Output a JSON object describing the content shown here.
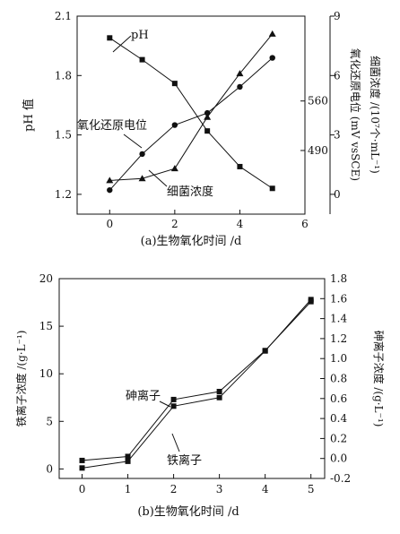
{
  "chart_data": [
    {
      "type": "line",
      "caption": "(a)生物氧化时间 /d",
      "x_ticks": [
        "0",
        "2",
        "4",
        "6"
      ],
      "xlim": [
        -1,
        6
      ],
      "axes": {
        "left": {
          "label": "pH 值",
          "ylim": [
            1.1,
            2.1
          ],
          "ticks": [
            "1.2",
            "1.5",
            "1.8",
            "2.1"
          ]
        },
        "right1": {
          "label": "氧化还原电位 (mV vsSCE)",
          "ylim": [
            400,
            680
          ],
          "ticks": [
            "490",
            "560"
          ]
        },
        "right2": {
          "label": "细菌浓度 /(10⁷个·mL⁻¹)",
          "ylim": [
            -1,
            9
          ],
          "ticks": [
            "0",
            "3",
            "6",
            "9"
          ]
        }
      },
      "series": [
        {
          "name": "pH",
          "marker": "square",
          "axis": "left",
          "x": [
            0,
            1,
            2,
            3,
            4,
            5
          ],
          "values": [
            1.99,
            1.88,
            1.76,
            1.52,
            1.34,
            1.23
          ]
        },
        {
          "name": "氧化还原电位",
          "marker": "circle",
          "axis": "right1",
          "x": [
            0,
            1,
            2,
            3,
            4,
            5
          ],
          "values": [
            434,
            485,
            526,
            543,
            580,
            621
          ]
        },
        {
          "name": "细菌浓度",
          "marker": "triangle",
          "axis": "right2",
          "x": [
            0,
            1,
            2,
            3,
            4,
            5
          ],
          "values": [
            0.7,
            0.8,
            1.3,
            3.9,
            6.1,
            8.1
          ]
        }
      ]
    },
    {
      "type": "line",
      "caption": "(b)生物氧化时间 /d",
      "x_ticks": [
        "0",
        "1",
        "2",
        "3",
        "4",
        "5"
      ],
      "xlim": [
        -0.5,
        5.3
      ],
      "axes": {
        "left": {
          "label": "铁离子浓度 /(g·L⁻¹)",
          "ylim": [
            -1,
            20
          ],
          "ticks": [
            "0",
            "5",
            "10",
            "15",
            "20"
          ]
        },
        "right": {
          "label": "砷离子浓度 /(g·L⁻¹)",
          "ylim": [
            -0.2,
            1.8
          ],
          "ticks": [
            "-0.2",
            "0.0",
            "0.2",
            "0.4",
            "0.6",
            "0.8",
            "1.0",
            "1.2",
            "1.4",
            "1.6",
            "1.8"
          ]
        }
      },
      "series": [
        {
          "name": "砷离子",
          "marker": "square",
          "axis": "right",
          "x": [
            0,
            1,
            2,
            3,
            4,
            5
          ],
          "values": [
            -0.02,
            0.02,
            0.59,
            0.67,
            1.08,
            1.57
          ]
        },
        {
          "name": "铁离子",
          "marker": "square",
          "axis": "left",
          "x": [
            0,
            1,
            2,
            3,
            4,
            5
          ],
          "values": [
            0.1,
            0.8,
            6.6,
            7.5,
            12.4,
            17.8
          ]
        }
      ]
    }
  ]
}
